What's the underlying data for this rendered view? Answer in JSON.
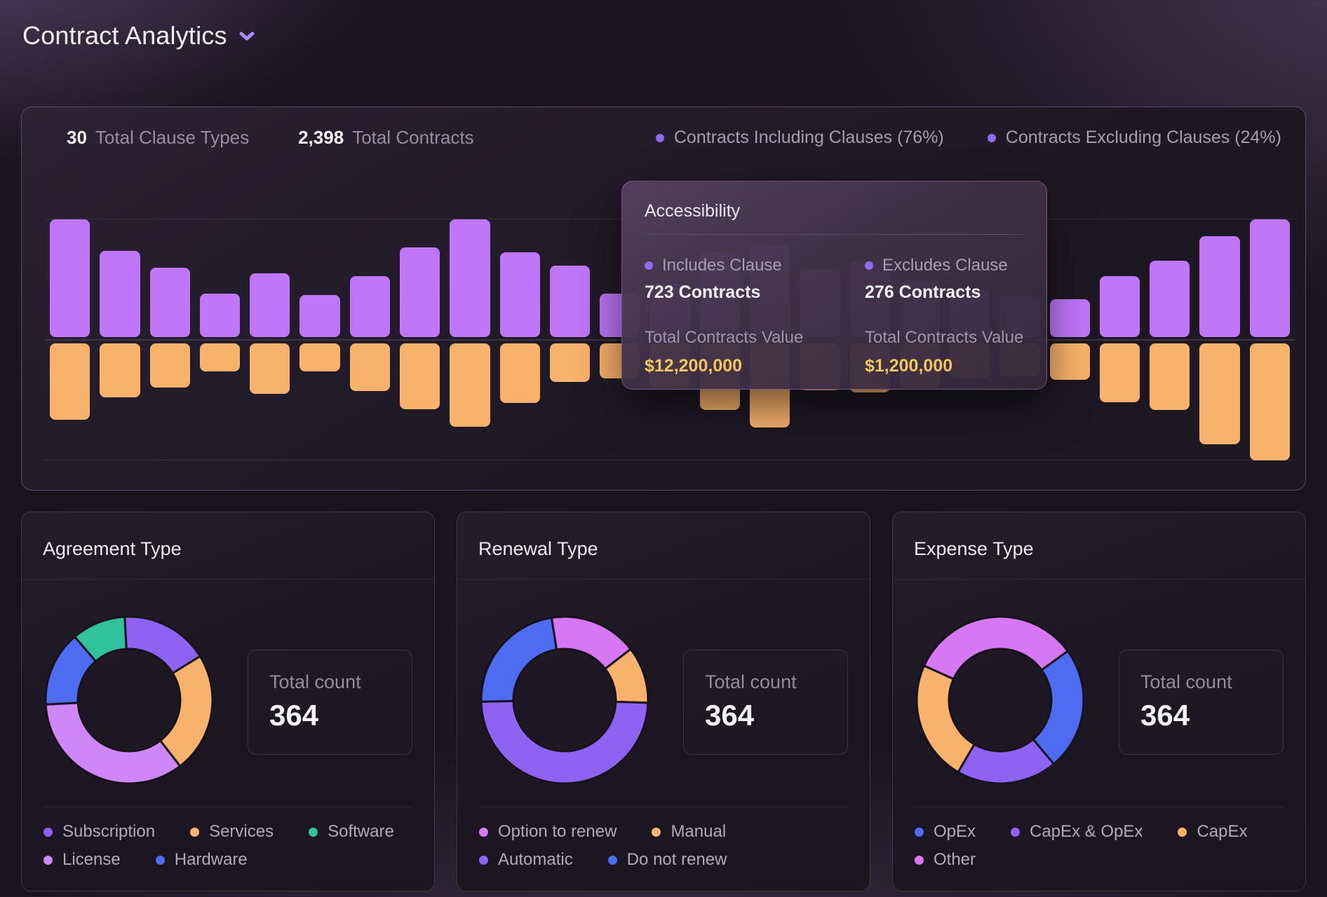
{
  "page": {
    "title": "Contract Analytics"
  },
  "summary": {
    "clause_types_value": "30",
    "clause_types_label": "Total Clause Types",
    "contracts_value": "2,398",
    "contracts_label": "Total Contracts",
    "legend": [
      {
        "label": "Contracts Including Clauses (76%)",
        "color": "#8e6cf2"
      },
      {
        "label": "Contracts Excluding Clauses (24%)",
        "color": "#8e6cf2"
      }
    ]
  },
  "tooltip": {
    "title": "Accessibility",
    "columns": [
      {
        "legend_label": "Includes Clause",
        "dot_color": "#8e6cf2",
        "contracts": "723 Contracts",
        "value_label": "Total Contracts Value",
        "value": "$12,200,000"
      },
      {
        "legend_label": "Excludes Clause",
        "dot_color": "#8e6cf2",
        "contracts": "276 Contracts",
        "value_label": "Total Contracts Value",
        "value": "$1,200,000"
      }
    ]
  },
  "colors": {
    "bar_purple": "#bf76f7",
    "bar_orange": "#f9b26c",
    "accent_yellow": "#eec75e"
  },
  "chart_data": [
    {
      "type": "diverging_bar",
      "title": "Contracts including vs excluding clauses per clause type",
      "bars_visible": 25,
      "x_tick_labels_shown": false,
      "legend_position": "top-right",
      "series": [
        {
          "name": "Contracts Including Clauses (76%)",
          "direction": "up",
          "color": "#bf76f7",
          "values_pct_of_max": [
            100,
            73,
            59,
            37,
            54,
            36,
            52,
            76,
            100,
            72,
            61,
            37,
            45,
            72,
            78,
            58,
            65,
            48,
            40,
            35,
            32,
            52,
            65,
            86,
            100
          ]
        },
        {
          "name": "Contracts Excluding Clauses (24%)",
          "direction": "down",
          "color": "#f9b26c",
          "values_pct_of_max": [
            65,
            46,
            38,
            24,
            43,
            24,
            41,
            56,
            71,
            51,
            33,
            30,
            38,
            57,
            72,
            40,
            42,
            38,
            30,
            28,
            31,
            50,
            57,
            86,
            100
          ]
        }
      ]
    },
    {
      "type": "donut",
      "title": "Agreement Type",
      "total_label": "Total count",
      "total_value": "364",
      "start_angle": -3,
      "segments": [
        {
          "label": "Subscription",
          "value": 62,
          "color": "#8e63f3"
        },
        {
          "label": "Services",
          "value": 85,
          "color": "#f9b26c"
        },
        {
          "label": "License",
          "value": 126,
          "color": "#cf87f8"
        },
        {
          "label": "Hardware",
          "value": 53,
          "color": "#4e6cf2"
        },
        {
          "label": "Software",
          "value": 38,
          "color": "#2fc29c"
        }
      ],
      "legend_rows": [
        [
          "Subscription",
          "Services",
          "Software"
        ],
        [
          "License",
          "Hardware"
        ]
      ]
    },
    {
      "type": "donut",
      "title": "Renewal Type",
      "total_label": "Total count",
      "total_value": "364",
      "start_angle": -9,
      "segments": [
        {
          "label": "Option to renew",
          "value": 62,
          "color": "#d678f3"
        },
        {
          "label": "Manual",
          "value": 40,
          "color": "#f9b26c"
        },
        {
          "label": "Automatic",
          "value": 179,
          "color": "#8e63f3"
        },
        {
          "label": "Do not renew",
          "value": 83,
          "color": "#4e6cf2"
        }
      ],
      "legend_rows": [
        [
          "Option to renew",
          "Manual"
        ],
        [
          "Automatic",
          "Do not renew"
        ]
      ]
    },
    {
      "type": "donut",
      "title": "Expense Type",
      "total_label": "Total count",
      "total_value": "364",
      "start_angle": 54,
      "segments": [
        {
          "label": "OpEx",
          "value": 87,
          "color": "#4e6cf2"
        },
        {
          "label": "CapEx & OpEx",
          "value": 71,
          "color": "#8e63f3"
        },
        {
          "label": "CapEx",
          "value": 85,
          "color": "#f9b26c"
        },
        {
          "label": "Other",
          "value": 121,
          "color": "#d678f3"
        }
      ],
      "legend_rows": [
        [
          "OpEx",
          "CapEx & OpEx",
          "CapEx"
        ],
        [
          "Other"
        ]
      ]
    }
  ]
}
